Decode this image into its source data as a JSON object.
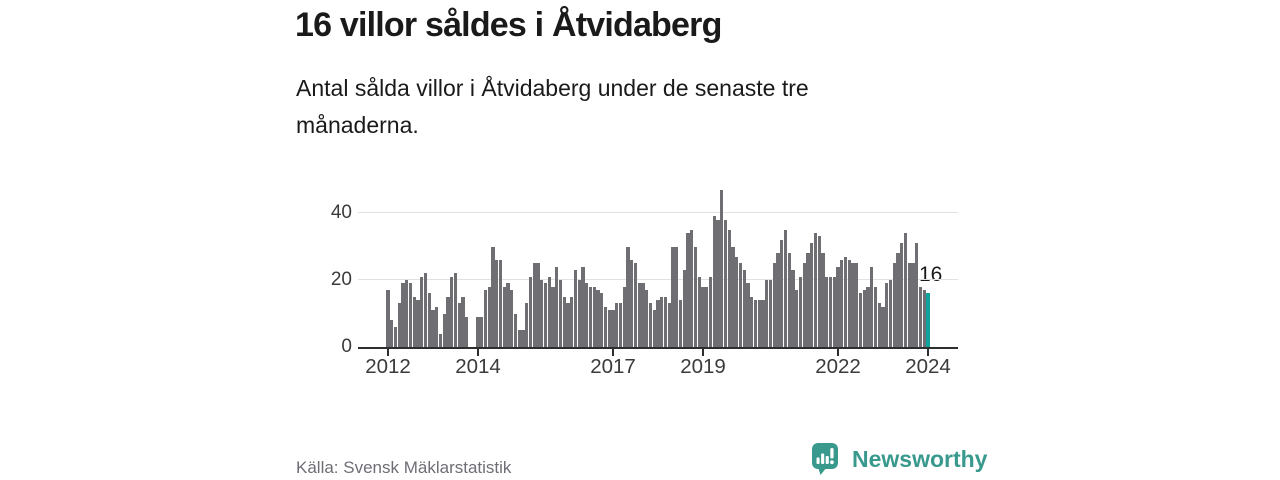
{
  "header": {
    "title": "16 villor såldes i Åtvidaberg",
    "subtitle": "Antal sålda villor i Åtvidaberg under de senaste tre månaderna."
  },
  "footer": {
    "source": "Källa: Svensk Mäklarstatistik",
    "brand": "Newsworthy"
  },
  "colors": {
    "bar": "#6e6e73",
    "highlight": "#10a29c",
    "brand_teal": "#39998d",
    "grid": "#e1e1e1",
    "axis": "#2e2e2e",
    "text_dark": "#1a1a1a",
    "text_gray": "#6e6e76"
  },
  "chart_data": {
    "type": "bar",
    "title": "16 villor såldes i Åtvidaberg",
    "ylabel": "",
    "xlabel": "",
    "unit": "sålda villor per månad",
    "start": "2012-01",
    "frequency": "monthly",
    "grid": true,
    "legend": false,
    "ylim": [
      0,
      48
    ],
    "yticks": [
      0,
      20,
      40
    ],
    "xticks": [
      {
        "label": "2012",
        "month_index": 0
      },
      {
        "label": "2014",
        "month_index": 24
      },
      {
        "label": "2017",
        "month_index": 60
      },
      {
        "label": "2019",
        "month_index": 84
      },
      {
        "label": "2022",
        "month_index": 120
      },
      {
        "label": "2024",
        "month_index": 144
      }
    ],
    "series": [
      {
        "name": "Sålda villor",
        "values": [
          17,
          8,
          6,
          13,
          19,
          20,
          19,
          15,
          14,
          21,
          22,
          16,
          11,
          12,
          4,
          10,
          15,
          21,
          22,
          13,
          15,
          9,
          0,
          0,
          9,
          9,
          17,
          18,
          30,
          26,
          26,
          18,
          19,
          17,
          10,
          5,
          5,
          13,
          21,
          25,
          25,
          20,
          19,
          21,
          18,
          24,
          20,
          15,
          13,
          15,
          23,
          20,
          24,
          19,
          18,
          18,
          17,
          16,
          12,
          11,
          11,
          13,
          13,
          18,
          30,
          26,
          25,
          19,
          19,
          17,
          13,
          11,
          14,
          15,
          15,
          13,
          30,
          30,
          14,
          23,
          34,
          35,
          30,
          21,
          18,
          18,
          21,
          39,
          38,
          47,
          38,
          35,
          30,
          27,
          25,
          23,
          19,
          15,
          14,
          14,
          14,
          20,
          20,
          25,
          28,
          32,
          35,
          28,
          23,
          17,
          21,
          25,
          28,
          31,
          34,
          33,
          28,
          21,
          21,
          21,
          24,
          26,
          27,
          26,
          25,
          25,
          16,
          17,
          18,
          24,
          18,
          13,
          12,
          19,
          20,
          25,
          28,
          31,
          34,
          25,
          25,
          31,
          18,
          17,
          16
        ]
      }
    ],
    "highlight": {
      "index": 144,
      "value": 16,
      "label": "16"
    }
  }
}
